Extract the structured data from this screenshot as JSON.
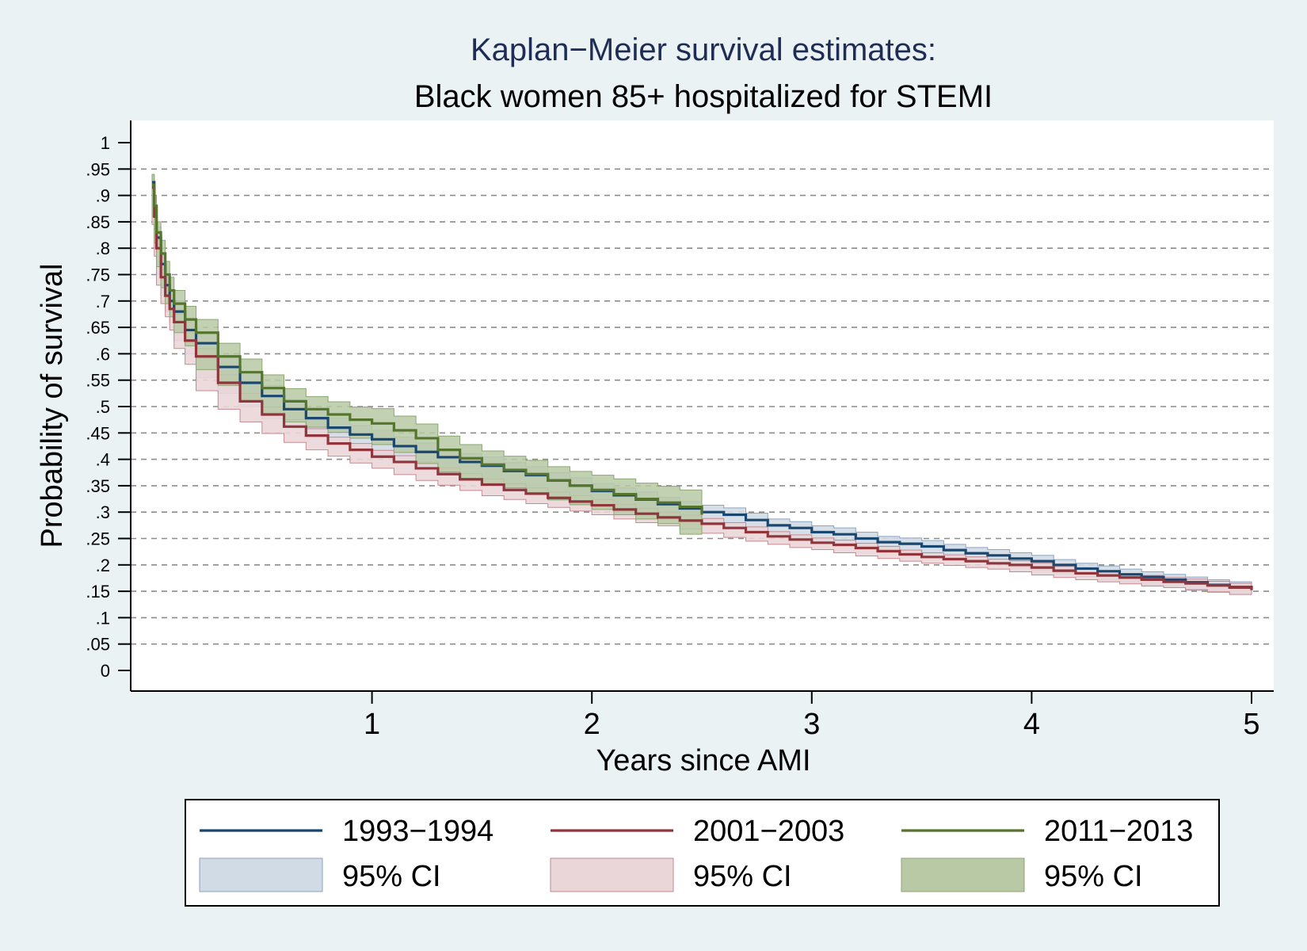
{
  "chart_data": {
    "type": "line",
    "title": "Kaplan−Meier survival estimates:",
    "subtitle": "Black women 85+ hospitalized for STEMI",
    "xlabel": "Years since AMI",
    "ylabel": "Probability of survival",
    "xlim": [
      0,
      5
    ],
    "ylim": [
      0,
      1
    ],
    "xticks": [
      {
        "v": 1,
        "label": "1"
      },
      {
        "v": 2,
        "label": "2"
      },
      {
        "v": 3,
        "label": "3"
      },
      {
        "v": 4,
        "label": "4"
      },
      {
        "v": 5,
        "label": "5"
      }
    ],
    "yticks": [
      {
        "v": 0,
        "label": "0"
      },
      {
        "v": 0.05,
        "label": ".05"
      },
      {
        "v": 0.1,
        "label": ".1"
      },
      {
        "v": 0.15,
        "label": ".15"
      },
      {
        "v": 0.2,
        "label": ".2"
      },
      {
        "v": 0.25,
        "label": ".25"
      },
      {
        "v": 0.3,
        "label": ".3"
      },
      {
        "v": 0.35,
        "label": ".35"
      },
      {
        "v": 0.4,
        "label": ".4"
      },
      {
        "v": 0.45,
        "label": ".45"
      },
      {
        "v": 0.5,
        "label": ".5"
      },
      {
        "v": 0.55,
        "label": ".55"
      },
      {
        "v": 0.6,
        "label": ".6"
      },
      {
        "v": 0.65,
        "label": ".65"
      },
      {
        "v": 0.7,
        "label": ".7"
      },
      {
        "v": 0.75,
        "label": ".75"
      },
      {
        "v": 0.8,
        "label": ".8"
      },
      {
        "v": 0.85,
        "label": ".85"
      },
      {
        "v": 0.9,
        "label": ".9"
      },
      {
        "v": 0.95,
        "label": ".95"
      },
      {
        "v": 1,
        "label": "1"
      }
    ],
    "grid": "horizontal dashed",
    "legend_position": "bottom",
    "series": [
      {
        "name": "1993−1994",
        "color": "#1a476f",
        "ci_label": "95% CI",
        "ci_fill": "#d1dbe6",
        "ci_stroke": "#8da3bf",
        "x": [
          0,
          0.01,
          0.02,
          0.04,
          0.06,
          0.08,
          0.1,
          0.15,
          0.2,
          0.3,
          0.4,
          0.5,
          0.6,
          0.7,
          0.8,
          0.9,
          1.0,
          1.1,
          1.2,
          1.3,
          1.4,
          1.5,
          1.6,
          1.7,
          1.8,
          1.9,
          2.0,
          2.1,
          2.2,
          2.3,
          2.4,
          2.5,
          2.6,
          2.7,
          2.8,
          2.9,
          3.0,
          3.1,
          3.2,
          3.3,
          3.4,
          3.5,
          3.6,
          3.7,
          3.8,
          3.9,
          4.0,
          4.1,
          4.2,
          4.3,
          4.4,
          4.5,
          4.6,
          4.7,
          4.8,
          4.9,
          5.0
        ],
        "y": [
          0.925,
          0.88,
          0.82,
          0.77,
          0.73,
          0.7,
          0.68,
          0.645,
          0.62,
          0.575,
          0.545,
          0.52,
          0.495,
          0.478,
          0.46,
          0.447,
          0.438,
          0.425,
          0.414,
          0.404,
          0.395,
          0.388,
          0.378,
          0.37,
          0.36,
          0.35,
          0.34,
          0.332,
          0.324,
          0.315,
          0.307,
          0.3,
          0.295,
          0.285,
          0.275,
          0.27,
          0.262,
          0.258,
          0.25,
          0.243,
          0.24,
          0.235,
          0.228,
          0.222,
          0.218,
          0.212,
          0.207,
          0.2,
          0.193,
          0.188,
          0.182,
          0.177,
          0.172,
          0.167,
          0.162,
          0.158,
          0.155
        ],
        "ci_lower": [
          0.91,
          0.865,
          0.8,
          0.75,
          0.71,
          0.68,
          0.66,
          0.625,
          0.6,
          0.555,
          0.525,
          0.5,
          0.477,
          0.46,
          0.442,
          0.43,
          0.421,
          0.408,
          0.397,
          0.388,
          0.379,
          0.372,
          0.362,
          0.354,
          0.345,
          0.335,
          0.326,
          0.318,
          0.31,
          0.302,
          0.294,
          0.287,
          0.282,
          0.272,
          0.263,
          0.258,
          0.25,
          0.246,
          0.238,
          0.232,
          0.229,
          0.224,
          0.217,
          0.211,
          0.207,
          0.201,
          0.196,
          0.19,
          0.183,
          0.178,
          0.172,
          0.167,
          0.162,
          0.157,
          0.152,
          0.148,
          0.145
        ],
        "ci_upper": [
          0.94,
          0.895,
          0.84,
          0.79,
          0.75,
          0.72,
          0.7,
          0.665,
          0.64,
          0.595,
          0.565,
          0.54,
          0.513,
          0.496,
          0.478,
          0.464,
          0.455,
          0.442,
          0.431,
          0.42,
          0.411,
          0.404,
          0.394,
          0.386,
          0.375,
          0.365,
          0.354,
          0.346,
          0.338,
          0.328,
          0.32,
          0.313,
          0.308,
          0.298,
          0.287,
          0.282,
          0.274,
          0.27,
          0.262,
          0.254,
          0.251,
          0.246,
          0.239,
          0.233,
          0.229,
          0.223,
          0.218,
          0.21,
          0.203,
          0.198,
          0.192,
          0.187,
          0.182,
          0.177,
          0.172,
          0.168,
          0.165
        ]
      },
      {
        "name": "2001−2003",
        "color": "#90353b",
        "ci_label": "95% CI",
        "ci_fill": "#ead6d8",
        "ci_stroke": "#c48a90",
        "x": [
          0,
          0.01,
          0.02,
          0.04,
          0.06,
          0.08,
          0.1,
          0.15,
          0.2,
          0.3,
          0.4,
          0.5,
          0.6,
          0.7,
          0.8,
          0.9,
          1.0,
          1.1,
          1.2,
          1.3,
          1.4,
          1.5,
          1.6,
          1.7,
          1.8,
          1.9,
          2.0,
          2.1,
          2.2,
          2.3,
          2.4,
          2.5,
          2.6,
          2.7,
          2.8,
          2.9,
          3.0,
          3.1,
          3.2,
          3.3,
          3.4,
          3.5,
          3.6,
          3.7,
          3.8,
          3.9,
          4.0,
          4.1,
          4.2,
          4.3,
          4.4,
          4.5,
          4.6,
          4.7,
          4.8,
          4.9,
          5.0
        ],
        "y": [
          0.915,
          0.86,
          0.8,
          0.745,
          0.71,
          0.685,
          0.66,
          0.625,
          0.595,
          0.545,
          0.51,
          0.485,
          0.462,
          0.445,
          0.43,
          0.418,
          0.405,
          0.395,
          0.383,
          0.372,
          0.362,
          0.352,
          0.342,
          0.335,
          0.327,
          0.32,
          0.313,
          0.305,
          0.297,
          0.29,
          0.284,
          0.278,
          0.27,
          0.262,
          0.254,
          0.248,
          0.242,
          0.238,
          0.232,
          0.226,
          0.22,
          0.215,
          0.211,
          0.207,
          0.203,
          0.2,
          0.195,
          0.189,
          0.184,
          0.18,
          0.176,
          0.172,
          0.168,
          0.165,
          0.161,
          0.157,
          0.152
        ],
        "ci_lower": [
          0.9,
          0.845,
          0.785,
          0.73,
          0.695,
          0.67,
          0.645,
          0.61,
          0.58,
          0.53,
          0.495,
          0.471,
          0.449,
          0.432,
          0.418,
          0.406,
          0.393,
          0.383,
          0.371,
          0.36,
          0.351,
          0.341,
          0.331,
          0.324,
          0.316,
          0.309,
          0.302,
          0.295,
          0.287,
          0.28,
          0.274,
          0.268,
          0.26,
          0.252,
          0.245,
          0.239,
          0.233,
          0.229,
          0.223,
          0.217,
          0.212,
          0.207,
          0.203,
          0.199,
          0.195,
          0.192,
          0.187,
          0.181,
          0.176,
          0.172,
          0.168,
          0.164,
          0.16,
          0.157,
          0.153,
          0.149,
          0.144
        ],
        "ci_upper": [
          0.93,
          0.875,
          0.815,
          0.76,
          0.725,
          0.7,
          0.675,
          0.64,
          0.61,
          0.56,
          0.525,
          0.499,
          0.475,
          0.458,
          0.442,
          0.43,
          0.417,
          0.407,
          0.395,
          0.384,
          0.373,
          0.363,
          0.353,
          0.346,
          0.338,
          0.331,
          0.324,
          0.315,
          0.307,
          0.3,
          0.294,
          0.288,
          0.28,
          0.272,
          0.263,
          0.257,
          0.251,
          0.247,
          0.241,
          0.235,
          0.228,
          0.223,
          0.219,
          0.215,
          0.211,
          0.208,
          0.203,
          0.197,
          0.192,
          0.188,
          0.184,
          0.18,
          0.176,
          0.173,
          0.169,
          0.165,
          0.16
        ]
      },
      {
        "name": "2011−2013",
        "color": "#55752f",
        "ci_label": "95% CI",
        "ci_fill": "#b9c9a6",
        "ci_stroke": "#8aa66e",
        "x": [
          0,
          0.01,
          0.02,
          0.04,
          0.06,
          0.08,
          0.1,
          0.15,
          0.2,
          0.3,
          0.4,
          0.5,
          0.6,
          0.7,
          0.8,
          0.9,
          1.0,
          1.1,
          1.2,
          1.3,
          1.4,
          1.5,
          1.6,
          1.7,
          1.8,
          1.9,
          2.0,
          2.1,
          2.2,
          2.3,
          2.4,
          2.5
        ],
        "y": [
          0.92,
          0.88,
          0.83,
          0.79,
          0.75,
          0.72,
          0.695,
          0.665,
          0.64,
          0.595,
          0.565,
          0.535,
          0.51,
          0.495,
          0.485,
          0.475,
          0.468,
          0.455,
          0.44,
          0.418,
          0.402,
          0.39,
          0.38,
          0.372,
          0.36,
          0.35,
          0.342,
          0.334,
          0.325,
          0.318,
          0.31,
          0.295
        ],
        "ci_lower": [
          0.9,
          0.86,
          0.81,
          0.765,
          0.725,
          0.695,
          0.67,
          0.64,
          0.615,
          0.57,
          0.54,
          0.51,
          0.486,
          0.471,
          0.461,
          0.451,
          0.44,
          0.428,
          0.413,
          0.392,
          0.376,
          0.364,
          0.354,
          0.346,
          0.334,
          0.323,
          0.314,
          0.305,
          0.295,
          0.287,
          0.278,
          0.258
        ],
        "ci_upper": [
          0.94,
          0.9,
          0.85,
          0.815,
          0.775,
          0.745,
          0.72,
          0.69,
          0.665,
          0.62,
          0.59,
          0.56,
          0.534,
          0.519,
          0.509,
          0.499,
          0.496,
          0.482,
          0.467,
          0.444,
          0.428,
          0.416,
          0.406,
          0.398,
          0.386,
          0.377,
          0.37,
          0.363,
          0.355,
          0.349,
          0.342,
          0.333
        ]
      }
    ]
  }
}
